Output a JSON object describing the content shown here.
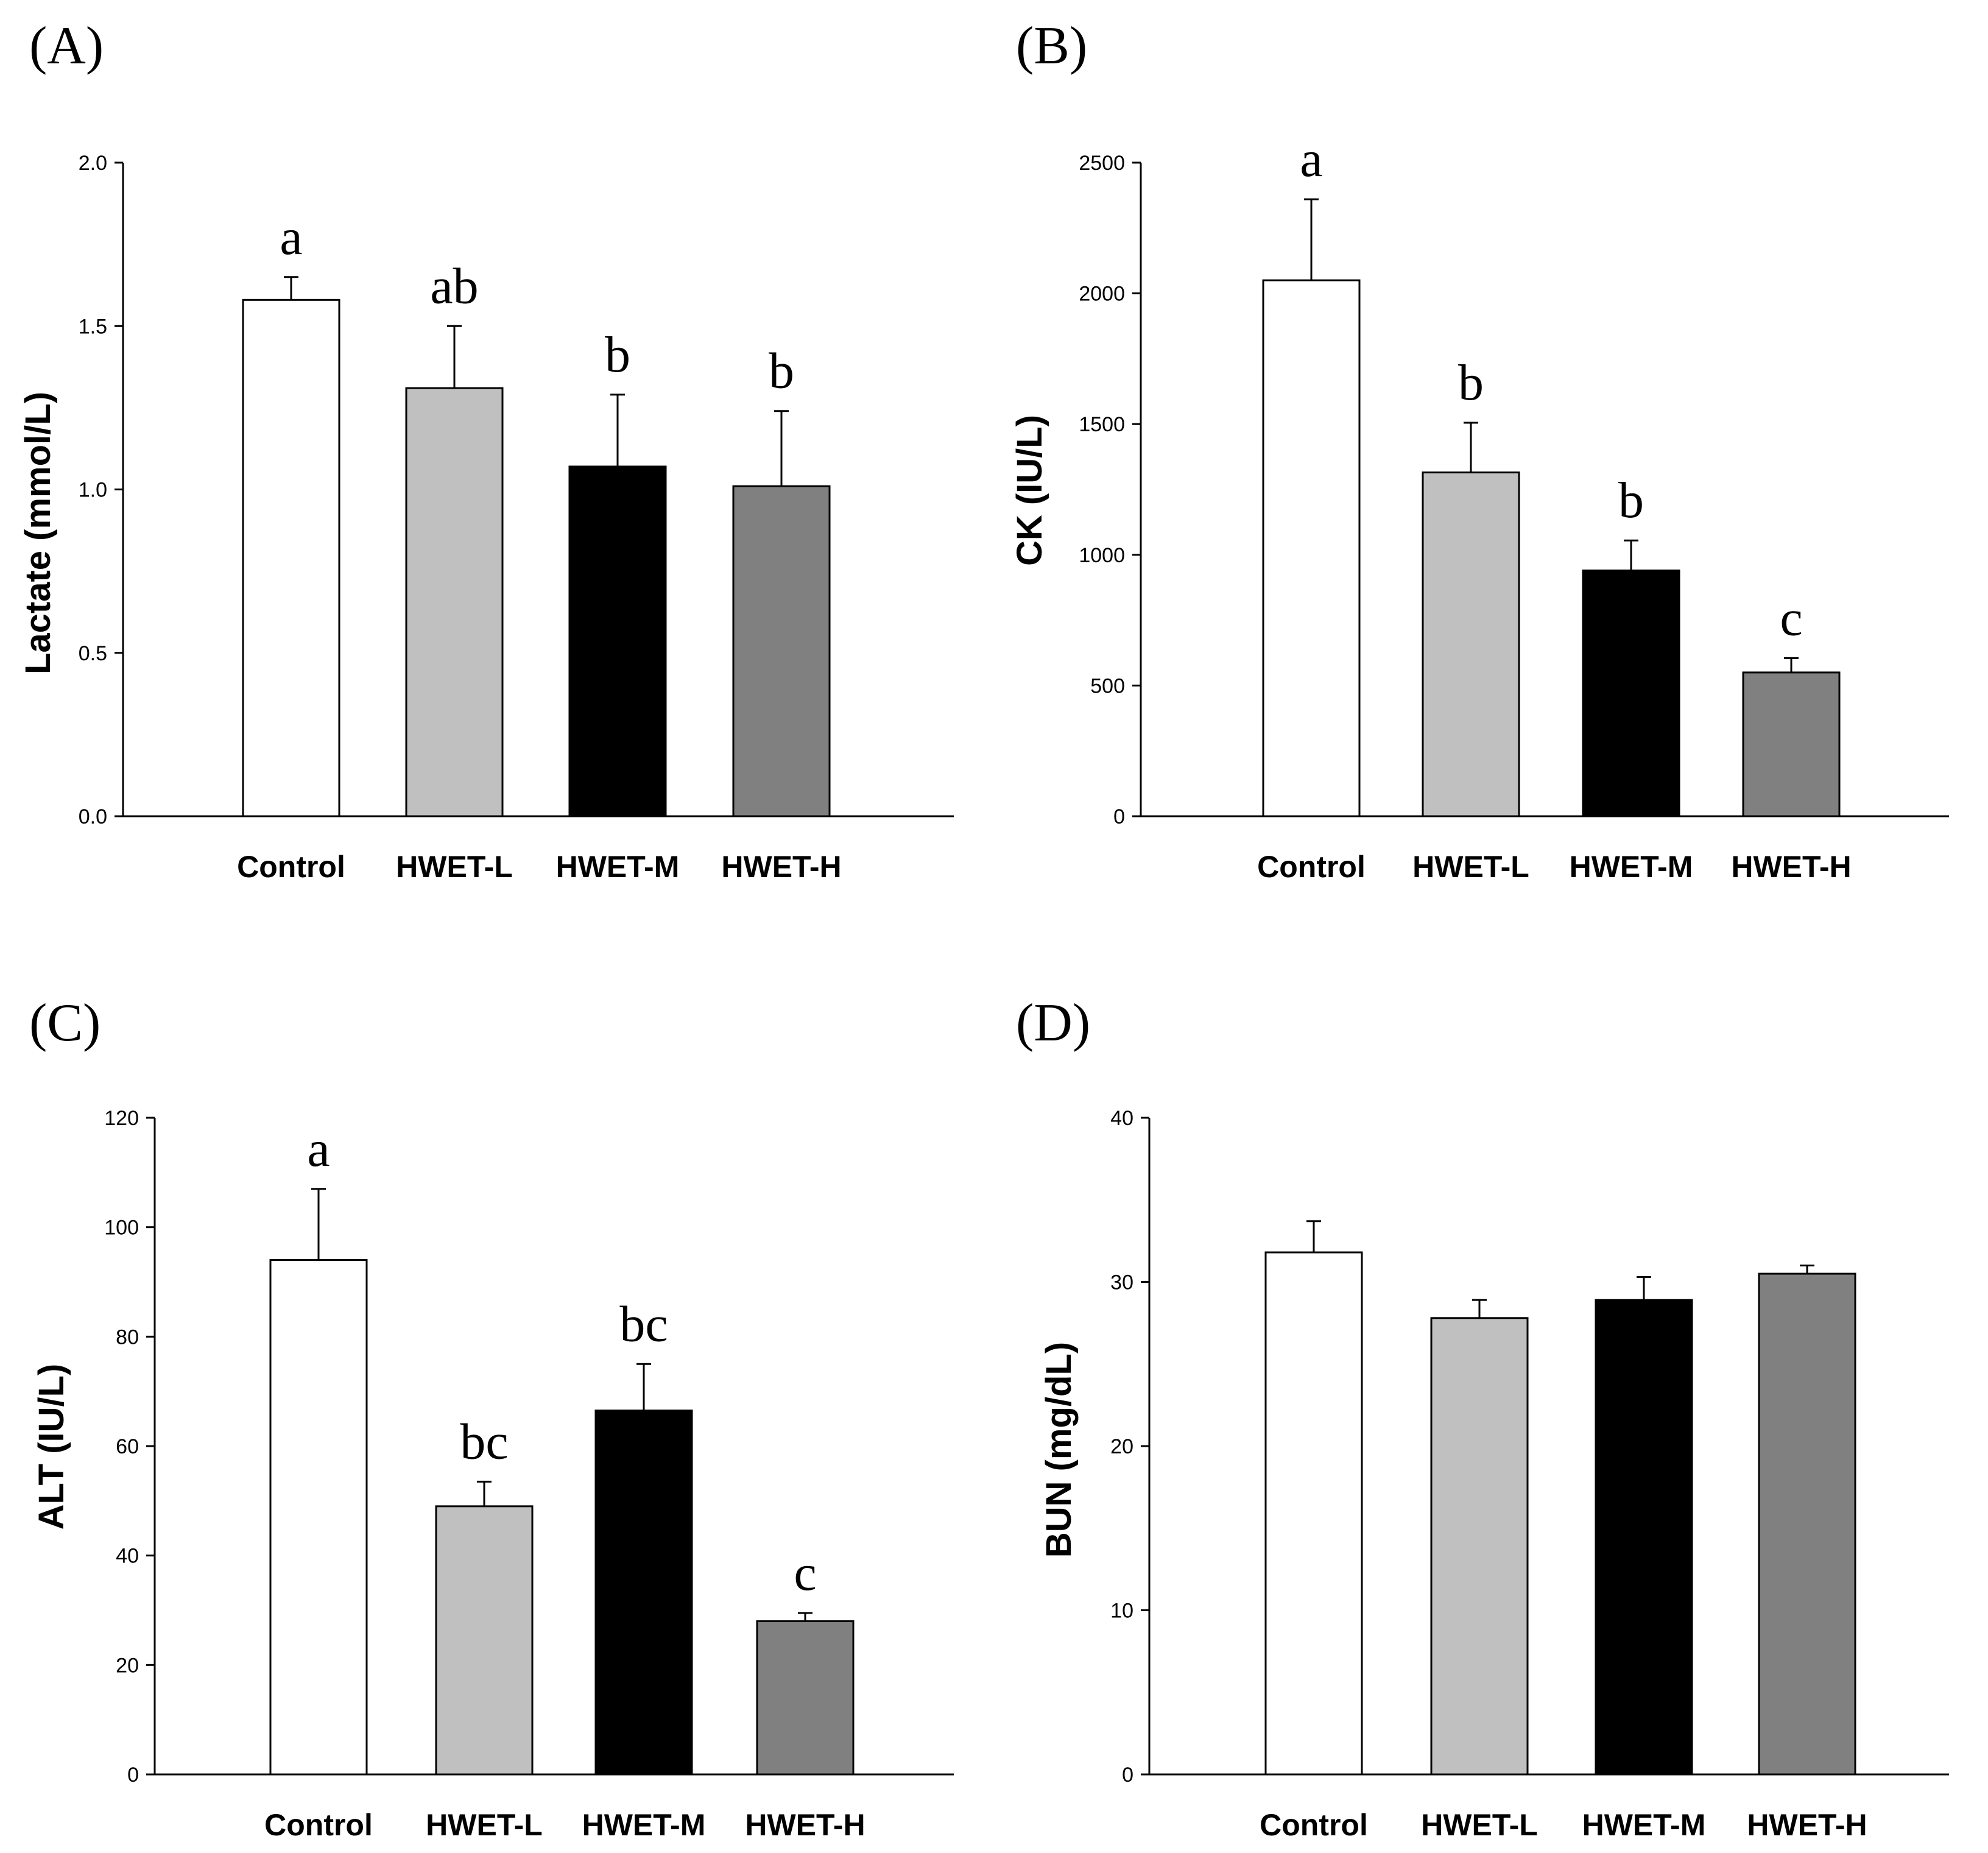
{
  "chart_data": [
    {
      "type": "bar",
      "panel": "(A)",
      "title": "",
      "xlabel": "",
      "ylabel": "Lactate (mmol/L)",
      "categories": [
        "Control",
        "HWET-L",
        "HWET-M",
        "HWET-H"
      ],
      "values": [
        1.58,
        1.31,
        1.07,
        1.01
      ],
      "errors": [
        0.07,
        0.19,
        0.22,
        0.23
      ],
      "significance": [
        "a",
        "ab",
        "b",
        "b"
      ],
      "ylim": [
        0,
        2.0
      ],
      "yticks": [
        0.0,
        0.5,
        1.0,
        1.5,
        2.0
      ],
      "ytick_labels": [
        "0.0",
        "0.5",
        "1.0",
        "1.5",
        "2.0"
      ],
      "bar_colors": [
        "#ffffff",
        "#c0c0c0",
        "#000000",
        "#808080"
      ]
    },
    {
      "type": "bar",
      "panel": "(B)",
      "title": "",
      "xlabel": "",
      "ylabel": "CK (IU/L)",
      "categories": [
        "Control",
        "HWET-L",
        "HWET-M",
        "HWET-H"
      ],
      "values": [
        2050,
        1315,
        940,
        550
      ],
      "errors": [
        310,
        190,
        115,
        55
      ],
      "significance": [
        "a",
        "b",
        "b",
        "c"
      ],
      "ylim": [
        0,
        2500
      ],
      "yticks": [
        0,
        500,
        1000,
        1500,
        2000,
        2500
      ],
      "ytick_labels": [
        "0",
        "500",
        "1000",
        "1500",
        "2000",
        "2500"
      ],
      "bar_colors": [
        "#ffffff",
        "#c0c0c0",
        "#000000",
        "#808080"
      ]
    },
    {
      "type": "bar",
      "panel": "(C)",
      "title": "",
      "xlabel": "",
      "ylabel": "ALT (IU/L)",
      "categories": [
        "Control",
        "HWET-L",
        "HWET-M",
        "HWET-H"
      ],
      "values": [
        94,
        49,
        66.5,
        28
      ],
      "errors": [
        13,
        4.5,
        8.5,
        1.5
      ],
      "significance": [
        "a",
        "bc",
        "bc",
        "c"
      ],
      "ylim": [
        0,
        120
      ],
      "yticks": [
        0,
        20,
        40,
        60,
        80,
        100,
        120
      ],
      "ytick_labels": [
        "0",
        "20",
        "40",
        "60",
        "80",
        "100",
        "120"
      ],
      "bar_colors": [
        "#ffffff",
        "#c0c0c0",
        "#000000",
        "#808080"
      ]
    },
    {
      "type": "bar",
      "panel": "(D)",
      "title": "",
      "xlabel": "",
      "ylabel": "BUN (mg/dL)",
      "categories": [
        "Control",
        "HWET-L",
        "HWET-M",
        "HWET-H"
      ],
      "values": [
        31.8,
        27.8,
        28.9,
        30.5
      ],
      "errors": [
        1.9,
        1.1,
        1.4,
        0.5
      ],
      "significance": [
        "",
        "",
        "",
        ""
      ],
      "ylim": [
        0,
        40
      ],
      "yticks": [
        0,
        10,
        20,
        30,
        40
      ],
      "ytick_labels": [
        "0",
        "10",
        "20",
        "30",
        "40"
      ],
      "bar_colors": [
        "#ffffff",
        "#c0c0c0",
        "#000000",
        "#808080"
      ]
    }
  ]
}
